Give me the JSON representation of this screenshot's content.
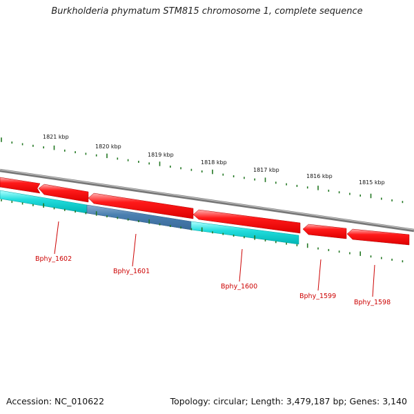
{
  "title": "Burkholderia phymatum STM815 chromosome 1, complete sequence",
  "accession_label": "Accession: NC_010622",
  "summary_label": "Topology: circular; Length: 3,479,187 bp; Genes: 3,140",
  "kbp_labels": [
    "1821 kbp",
    "1820 kbp",
    "1819 kbp",
    "1818 kbp",
    "1817 kbp",
    "1816 kbp",
    "1815 kbp"
  ],
  "gene_labels": [
    "Bphy_1602",
    "Bphy_1601",
    "Bphy_1600",
    "Bphy_1599",
    "Bphy_1598"
  ],
  "colors": {
    "cds_forward": "#ff0000",
    "cds_reverse": "#00cccc",
    "cds_highlight": "#4477aa",
    "backbone": "#888888",
    "ticks": "#227722",
    "gene_label": "#cc0000"
  }
}
